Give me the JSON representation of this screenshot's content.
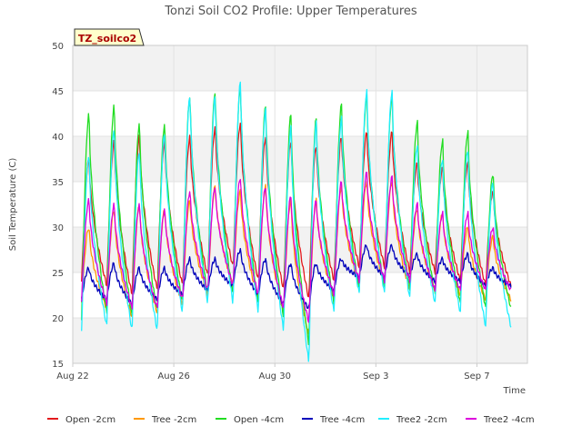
{
  "chart_data": {
    "type": "line",
    "title": "Tonzi Soil CO2 Profile: Upper Temperatures",
    "xlabel": "Time",
    "ylabel": "Soil Temperature (C)",
    "annotation": "TZ_soilco2",
    "xlim": [
      0,
      18
    ],
    "ylim": [
      15,
      50
    ],
    "x_ticks": [
      {
        "value": 0,
        "label": "Aug 22"
      },
      {
        "value": 4,
        "label": "Aug 26"
      },
      {
        "value": 8,
        "label": "Aug 30"
      },
      {
        "value": 12,
        "label": "Sep 3"
      },
      {
        "value": 16,
        "label": "Sep 7"
      }
    ],
    "y_ticks": [
      15,
      20,
      25,
      30,
      35,
      40,
      45,
      50
    ],
    "grid": true,
    "legend_position": "bottom",
    "series": [
      {
        "name": "Open -2cm",
        "color": "#e31a1c",
        "peaks": [
          37.5,
          39.5,
          40.0,
          39.5,
          40.0,
          41.0,
          41.5,
          40.0,
          39.5,
          39.0,
          40.0,
          40.5,
          40.5,
          37.0,
          36.5,
          37.0,
          34.0
        ],
        "troughs": [
          24.0,
          23.5,
          22.5,
          23.0,
          23.5,
          24.5,
          25.5,
          24.0,
          23.0,
          22.0,
          24.0,
          25.5,
          25.5,
          25.0,
          25.0,
          24.0,
          23.5
        ]
      },
      {
        "name": "Tree -2cm",
        "color": "#ff9900",
        "peaks": [
          30.0,
          32.0,
          32.5,
          32.0,
          33.0,
          34.5,
          34.0,
          34.5,
          33.0,
          33.0,
          34.5,
          35.0,
          35.0,
          32.0,
          31.5,
          30.0,
          29.0
        ],
        "troughs": [
          21.5,
          21.0,
          20.0,
          20.5,
          21.5,
          22.5,
          23.5,
          22.0,
          20.5,
          18.0,
          22.0,
          23.5,
          23.5,
          23.0,
          23.0,
          22.5,
          22.0
        ]
      },
      {
        "name": "Open -4cm",
        "color": "#22dd22",
        "peaks": [
          42.5,
          43.5,
          41.5,
          41.5,
          44.5,
          45.0,
          45.5,
          43.5,
          42.5,
          42.0,
          43.5,
          44.5,
          44.5,
          41.5,
          39.5,
          40.5,
          36.0
        ],
        "troughs": [
          20.0,
          20.5,
          20.0,
          20.5,
          21.5,
          22.5,
          22.5,
          21.5,
          20.0,
          17.0,
          21.5,
          23.0,
          23.0,
          23.0,
          22.5,
          21.5,
          21.0
        ]
      },
      {
        "name": "Tree -4cm",
        "color": "#0000bb",
        "peaks": [
          25.5,
          26.0,
          25.5,
          25.5,
          26.5,
          26.5,
          27.5,
          26.5,
          26.0,
          26.0,
          26.5,
          28.0,
          28.0,
          27.0,
          26.5,
          27.0,
          25.5
        ],
        "troughs": [
          22.0,
          22.0,
          21.5,
          22.0,
          22.5,
          23.0,
          23.5,
          22.5,
          21.5,
          21.0,
          23.0,
          24.5,
          24.5,
          24.5,
          24.0,
          24.0,
          23.5
        ]
      },
      {
        "name": "Tree2 -2cm",
        "color": "#22eeff",
        "peaks": [
          38.0,
          41.0,
          38.5,
          40.5,
          44.5,
          44.5,
          46.0,
          43.0,
          41.0,
          41.5,
          42.0,
          45.0,
          45.0,
          39.0,
          37.5,
          38.5,
          35.0
        ],
        "troughs": [
          18.5,
          19.0,
          18.5,
          18.5,
          20.5,
          21.5,
          21.5,
          20.5,
          18.5,
          15.0,
          20.5,
          22.5,
          22.5,
          22.0,
          21.5,
          20.5,
          19.0
        ]
      },
      {
        "name": "Tree2 -4cm",
        "color": "#dd00dd",
        "peaks": [
          33.0,
          32.5,
          32.5,
          32.0,
          34.0,
          34.5,
          35.5,
          34.5,
          33.5,
          33.0,
          35.0,
          36.0,
          35.5,
          32.5,
          31.5,
          31.5,
          30.0
        ],
        "troughs": [
          22.0,
          21.5,
          21.0,
          21.0,
          22.0,
          23.0,
          23.5,
          22.5,
          21.0,
          19.5,
          22.5,
          24.0,
          24.0,
          24.0,
          23.0,
          23.0,
          23.0
        ]
      }
    ]
  }
}
